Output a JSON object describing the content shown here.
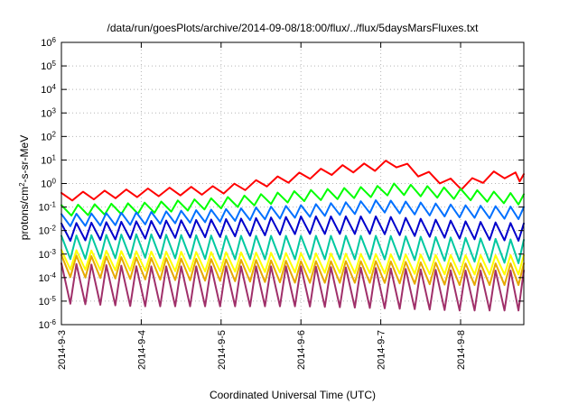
{
  "chart_data": {
    "type": "line",
    "title": "/data/run/goesPlots/archive/2014-09-08/18:00/flux/../flux/5daysMarsFluxes.txt",
    "xlabel": "Coordinated Universal Time (UTC)",
    "ylabel": {
      "base": "protons/cm",
      "sup": "2",
      "rest": "-s-sr-MeV"
    },
    "yscale": "log",
    "ylim": [
      1e-06,
      1000000.0
    ],
    "y_ticks": [
      {
        "value": 1e-06,
        "base": "10",
        "exp": "-6"
      },
      {
        "value": 1e-05,
        "base": "10",
        "exp": "-5"
      },
      {
        "value": 0.0001,
        "base": "10",
        "exp": "-4"
      },
      {
        "value": 0.001,
        "base": "10",
        "exp": "-3"
      },
      {
        "value": 0.01,
        "base": "10",
        "exp": "-2"
      },
      {
        "value": 0.1,
        "base": "10",
        "exp": "-1"
      },
      {
        "value": 1,
        "base": "10",
        "exp": "0"
      },
      {
        "value": 10,
        "base": "10",
        "exp": "1"
      },
      {
        "value": 100,
        "base": "10",
        "exp": "2"
      },
      {
        "value": 1000,
        "base": "10",
        "exp": "3"
      },
      {
        "value": 10000,
        "base": "10",
        "exp": "4"
      },
      {
        "value": 100000,
        "base": "10",
        "exp": "5"
      },
      {
        "value": 1000000,
        "base": "10",
        "exp": "6"
      }
    ],
    "xlim": [
      "2014-09-03T00:00",
      "2014-09-08T19:00"
    ],
    "x_ticks": [
      {
        "value": "2014-09-03T00:00",
        "label": "2014-9-3"
      },
      {
        "value": "2014-09-04T00:00",
        "label": "2014-9-4"
      },
      {
        "value": "2014-09-05T00:00",
        "label": "2014-9-5"
      },
      {
        "value": "2014-09-06T00:00",
        "label": "2014-9-6"
      },
      {
        "value": "2014-09-07T00:00",
        "label": "2014-9-7"
      },
      {
        "value": "2014-09-08T00:00",
        "label": "2014-9-8"
      }
    ],
    "grid": true,
    "legend": "none",
    "series": [
      {
        "color": "#ff0000",
        "period_hours": 6.5,
        "x_at_min": 0.5,
        "min_frac": 0.45,
        "x": [
          "2014-09-03T00:00",
          "2014-09-04T00:00",
          "2014-09-05T00:00",
          "2014-09-05T12:00",
          "2014-09-06T00:00",
          "2014-09-06T12:00",
          "2014-09-07T00:00",
          "2014-09-07T04:00",
          "2014-09-07T12:00",
          "2014-09-08T00:00",
          "2014-09-08T12:00",
          "2014-09-08T19:00"
        ],
        "y": [
          0.4,
          0.6,
          0.8,
          1.5,
          3.0,
          6.0,
          8.0,
          12.0,
          4.0,
          1.2,
          4.0,
          2.5
        ]
      },
      {
        "color": "#00ff00",
        "period_hours": 5.0,
        "x_at_min": 0.6,
        "min_frac": 0.35,
        "x": [
          "2014-09-03T00:00",
          "2014-09-04T00:00",
          "2014-09-05T00:00",
          "2014-09-06T00:00",
          "2014-09-07T00:00",
          "2014-09-07T04:00",
          "2014-09-08T00:00",
          "2014-09-08T19:00"
        ],
        "y": [
          0.12,
          0.15,
          0.25,
          0.5,
          0.8,
          1.0,
          0.6,
          0.35
        ]
      },
      {
        "color": "#0070ff",
        "period_hours": 4.5,
        "x_at_min": 0.6,
        "min_frac": 0.3,
        "x": [
          "2014-09-03T00:00",
          "2014-09-04T00:00",
          "2014-09-05T00:00",
          "2014-09-06T00:00",
          "2014-09-07T00:00",
          "2014-09-08T00:00",
          "2014-09-08T19:00"
        ],
        "y": [
          0.05,
          0.06,
          0.08,
          0.12,
          0.2,
          0.12,
          0.1
        ]
      },
      {
        "color": "#0000cc",
        "period_hours": 4.5,
        "x_at_min": 0.6,
        "min_frac": 0.18,
        "x": [
          "2014-09-03T00:00",
          "2014-09-04T00:00",
          "2014-09-05T00:00",
          "2014-09-06T00:00",
          "2014-09-07T00:00",
          "2014-09-08T00:00",
          "2014-09-08T19:00"
        ],
        "y": [
          0.02,
          0.025,
          0.03,
          0.04,
          0.04,
          0.025,
          0.02
        ]
      },
      {
        "color": "#00c8a0",
        "period_hours": 4.5,
        "x_at_min": 0.6,
        "min_frac": 0.1,
        "x": [
          "2014-09-03T00:00",
          "2014-09-04T00:00",
          "2014-09-05T00:00",
          "2014-09-06T00:00",
          "2014-09-07T00:00",
          "2014-09-08T00:00",
          "2014-09-08T19:00"
        ],
        "y": [
          0.006,
          0.007,
          0.006,
          0.006,
          0.006,
          0.005,
          0.004
        ]
      },
      {
        "color": "#ffff00",
        "period_hours": 4.5,
        "x_at_min": 0.6,
        "min_frac": 0.15,
        "x": [
          "2014-09-03T00:00",
          "2014-09-04T00:00",
          "2014-09-05T00:00",
          "2014-09-06T00:00",
          "2014-09-07T00:00",
          "2014-09-08T00:00",
          "2014-09-08T19:00"
        ],
        "y": [
          0.0015,
          0.0013,
          0.0012,
          0.0011,
          0.001,
          0.0009,
          0.0009
        ]
      },
      {
        "color": "#e6a800",
        "period_hours": 4.5,
        "x_at_min": 0.6,
        "min_frac": 0.12,
        "x": [
          "2014-09-03T00:00",
          "2014-09-04T00:00",
          "2014-09-05T00:00",
          "2014-09-06T00:00",
          "2014-09-07T00:00",
          "2014-09-08T00:00",
          "2014-09-08T19:00"
        ],
        "y": [
          0.0009,
          0.0007,
          0.0006,
          0.0005,
          0.0005,
          0.0004,
          0.0004
        ]
      },
      {
        "color": "#a0306a",
        "period_hours": 4.5,
        "x_at_min": 0.6,
        "min_frac": 0.02,
        "x": [
          "2014-09-03T00:00",
          "2014-09-04T00:00",
          "2014-09-05T00:00",
          "2014-09-06T00:00",
          "2014-09-07T00:00",
          "2014-09-08T00:00",
          "2014-09-08T19:00"
        ],
        "y": [
          0.0004,
          0.0003,
          0.0003,
          0.0003,
          0.00025,
          0.0002,
          0.0002
        ]
      }
    ]
  }
}
